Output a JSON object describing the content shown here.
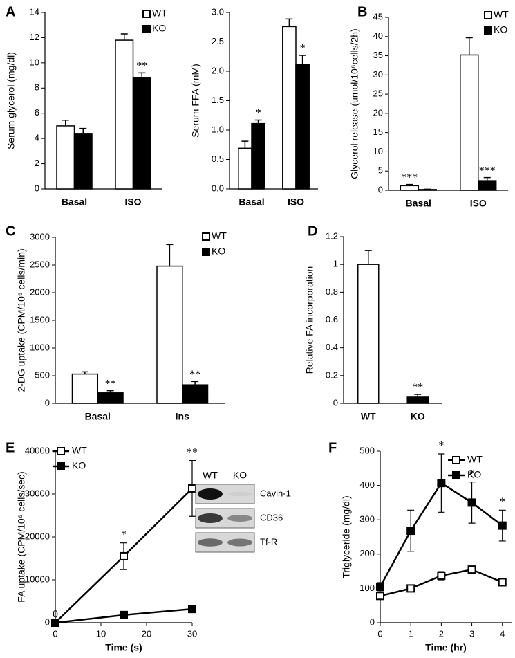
{
  "chart_data": [
    {
      "type": "bar",
      "panel": "A",
      "ylabel": "Serum glycerol (mg/dl)",
      "categories": [
        "Basal",
        "ISO"
      ],
      "series": [
        {
          "name": "WT",
          "color": "#ffffff",
          "values": [
            5.0,
            11.8
          ],
          "errors": [
            0.45,
            0.5
          ],
          "significance": [
            null,
            null
          ]
        },
        {
          "name": "KO",
          "color": "#000000",
          "values": [
            4.4,
            8.8
          ],
          "errors": [
            0.4,
            0.4
          ],
          "significance": [
            null,
            "**"
          ]
        }
      ],
      "ylim": [
        0,
        14
      ],
      "yticks": [
        0,
        2,
        4,
        6,
        8,
        10,
        12,
        14
      ]
    },
    {
      "type": "bar",
      "ylabel": "Serum FFA (mM)",
      "categories": [
        "Basal",
        "ISO"
      ],
      "series": [
        {
          "color": "#ffffff",
          "values": [
            0.69,
            2.76
          ],
          "errors": [
            0.12,
            0.13
          ],
          "significance": [
            null,
            null
          ]
        },
        {
          "color": "#000000",
          "values": [
            1.11,
            2.12
          ],
          "errors": [
            0.06,
            0.15
          ],
          "significance": [
            "*",
            "*"
          ]
        }
      ],
      "ylim": [
        0,
        3
      ],
      "yticks": [
        {
          "value": 0,
          "label": "0.0"
        },
        0.5,
        {
          "value": 1,
          "label": "1.0"
        },
        1.5,
        {
          "value": 2,
          "label": "2.0"
        },
        2.5,
        {
          "value": 3,
          "label": "3.0"
        }
      ]
    },
    {
      "type": "bar",
      "panel": "B",
      "ylabel": "Glycerol release (umol/10⁶cells/2h)",
      "categories": [
        "Basal",
        "ISO"
      ],
      "series": [
        {
          "name": "WT",
          "color": "#ffffff",
          "values": [
            1.2,
            35.2
          ],
          "errors": [
            0.3,
            4.5
          ],
          "significance": [
            "***",
            null
          ]
        },
        {
          "name": "KO",
          "color": "#000000",
          "values": [
            0.2,
            2.5
          ],
          "errors": [
            0.1,
            0.8
          ],
          "significance": [
            null,
            "***"
          ]
        }
      ],
      "ylim": [
        0,
        45
      ],
      "yticks": [
        0,
        5,
        10,
        15,
        20,
        25,
        30,
        35,
        40,
        45
      ]
    },
    {
      "type": "bar",
      "panel": "C",
      "ylabel": "2-DG uptake (CPM/10⁶ cells/min)",
      "categories": [
        "Basal",
        "Ins"
      ],
      "series": [
        {
          "name": "WT",
          "color": "#ffffff",
          "values": [
            530,
            2480
          ],
          "errors": [
            40,
            390
          ],
          "significance": [
            null,
            null
          ]
        },
        {
          "name": "KO",
          "color": "#000000",
          "values": [
            190,
            335
          ],
          "errors": [
            40,
            60
          ],
          "significance": [
            "**",
            "**"
          ]
        }
      ],
      "ylim": [
        0,
        3000
      ],
      "yticks": [
        0,
        500,
        1000,
        1500,
        2000,
        2500,
        3000
      ]
    },
    {
      "type": "bar",
      "panel": "D",
      "ylabel": "Relative FA  incorporation",
      "categories": [
        "WT",
        "KO"
      ],
      "series": [
        {
          "colors": [
            "#ffffff",
            "#000000"
          ],
          "values": [
            1,
            0.045
          ],
          "errors": [
            0.1,
            0.02
          ],
          "significance": [
            null,
            "**"
          ]
        }
      ],
      "ylim": [
        0,
        1.2
      ],
      "yticks": [
        0,
        0.2,
        0.4,
        0.6,
        0.8,
        1,
        1.2
      ]
    },
    {
      "type": "line",
      "panel": "E",
      "ylabel": "FA uptake (CPM/10⁶ cells/sec)",
      "xlabel": "Time (s)",
      "x": [
        0,
        15,
        30
      ],
      "xlim": [
        0,
        30
      ],
      "xticks": [
        0,
        10,
        20,
        30
      ],
      "ylim": [
        0,
        40000
      ],
      "yticks": [
        0,
        10000,
        20000,
        30000,
        40000
      ],
      "line_color": "#000000",
      "series": [
        {
          "name": "WT",
          "color": "#ffffff",
          "values": [
            0,
            15500,
            31300
          ],
          "errors": [
            0,
            3100,
            6500
          ],
          "significance": [
            "0",
            "*",
            "**"
          ]
        },
        {
          "name": "KO",
          "color": "#000000",
          "values": [
            0,
            1800,
            3200
          ],
          "errors": [
            0,
            300,
            400
          ],
          "significance": [
            null,
            null,
            null
          ]
        }
      ],
      "inset": {
        "columns": [
          "WT",
          "KO"
        ],
        "rows": [
          "Cavin-1",
          "CD36",
          "Tf-R"
        ]
      }
    },
    {
      "type": "line",
      "panel": "F",
      "ylabel": "Triglyceride (mg/dl)",
      "xlabel": "Time (hr)",
      "x": [
        0,
        1,
        2,
        3,
        4
      ],
      "xlim": [
        0,
        4.3
      ],
      "xticks": [
        0,
        1,
        2,
        3,
        4
      ],
      "ylim": [
        0,
        500
      ],
      "yticks": [
        0,
        100,
        200,
        300,
        400,
        500
      ],
      "line_color": "#000000",
      "series": [
        {
          "name": "WT",
          "color": "#ffffff",
          "values": [
            78,
            100,
            137,
            155,
            118
          ],
          "errors": [
            10,
            8,
            12,
            8,
            10
          ],
          "significance": [
            null,
            null,
            null,
            null,
            null
          ]
        },
        {
          "name": "KO",
          "color": "#000000",
          "values": [
            105,
            268,
            407,
            350,
            283
          ],
          "errors": [
            12,
            60,
            85,
            60,
            45
          ],
          "significance": [
            null,
            null,
            "*",
            "*",
            "*"
          ]
        }
      ]
    }
  ]
}
